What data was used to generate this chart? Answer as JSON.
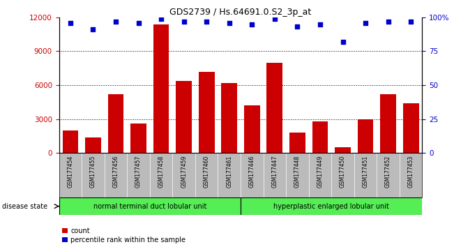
{
  "title": "GDS2739 / Hs.64691.0.S2_3p_at",
  "samples": [
    "GSM177454",
    "GSM177455",
    "GSM177456",
    "GSM177457",
    "GSM177458",
    "GSM177459",
    "GSM177460",
    "GSM177461",
    "GSM177446",
    "GSM177447",
    "GSM177448",
    "GSM177449",
    "GSM177450",
    "GSM177451",
    "GSM177452",
    "GSM177453"
  ],
  "counts": [
    2000,
    1400,
    5200,
    2600,
    11400,
    6400,
    7200,
    6200,
    4200,
    8000,
    1800,
    2800,
    500,
    3000,
    5200,
    4400
  ],
  "percentiles": [
    96,
    91,
    97,
    96,
    99,
    97,
    97,
    96,
    95,
    99,
    93,
    95,
    82,
    96,
    97,
    97
  ],
  "group1_label": "normal terminal duct lobular unit",
  "group1_count": 8,
  "group2_label": "hyperplastic enlarged lobular unit",
  "group2_count": 8,
  "disease_state_label": "disease state",
  "bar_color": "#cc0000",
  "dot_color": "#0000cc",
  "ylim_left": [
    0,
    12000
  ],
  "ylim_right": [
    0,
    100
  ],
  "yticks_left": [
    0,
    3000,
    6000,
    9000,
    12000
  ],
  "yticks_right": [
    0,
    25,
    50,
    75,
    100
  ],
  "grid_lines": [
    3000,
    6000,
    9000
  ],
  "bg_color": "#ffffff",
  "xticklabel_bg": "#bbbbbb",
  "group_bg": "#55ee55",
  "legend_count_label": "count",
  "legend_pct_label": "percentile rank within the sample"
}
